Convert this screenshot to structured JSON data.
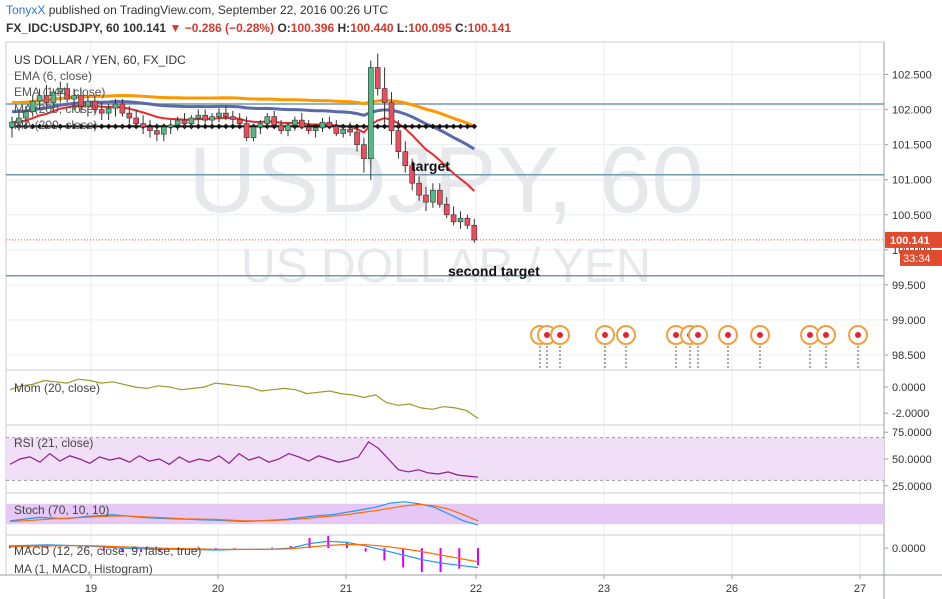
{
  "header": {
    "author": "TonyxX",
    "published_text": "published on TradingView.com, September 22, 2016 00:26 UTC",
    "symbol": "FX_IDC:USDJPY, 60",
    "last": "100.141",
    "change": "−0.286 (−0.28%)",
    "open_label": "O:",
    "open": "100.396",
    "high_label": "H:",
    "high": "100.440",
    "low_label": "L:",
    "low": "100.095",
    "close_label": "C:",
    "close": "100.141"
  },
  "watermark": {
    "main": "USDJPY, 60",
    "sub": "US DOLLAR / YEN"
  },
  "colors": {
    "grid": "#e9edf2",
    "bull": "#53b987",
    "bear": "#eb4d5c",
    "ema_fast": "#ff9800",
    "ema_mid": "#5b6aa6",
    "ma200": "#e62c2c",
    "ma_black": "#111111",
    "mom": "#9a9a2e",
    "rsi": "#8e1a8e",
    "rsi_band": "#f1dff7",
    "stoch_band": "#e5c8f5",
    "macd": "#2196f3",
    "signal": "#ff6d00",
    "hist": "#d500f9",
    "level_line": "#6f9bab",
    "price_badge": "#e04a2e"
  },
  "chart_data": [
    {
      "type": "candlestick",
      "title": "US DOLLAR / YEN, 60, FX_IDC",
      "indicators": [
        "EMA (6, close)",
        "EMA (144, close)",
        "MA (200, close)",
        "MA (200, close)"
      ],
      "x_axis_labels": [
        "19",
        "20",
        "21",
        "22",
        "23",
        "26",
        "27"
      ],
      "y_ticks": [
        "102.500",
        "102.000",
        "101.500",
        "101.000",
        "100.500",
        "100.000",
        "99.500",
        "99.000",
        "98.500"
      ],
      "ylim": [
        98.4,
        102.85
      ],
      "last_price": "100.141",
      "countdown": "33:34",
      "horizontal_levels": [
        102.08,
        101.07,
        99.63
      ],
      "annotations": [
        "target",
        "second target"
      ],
      "ohlc": [
        [
          101.75,
          101.9,
          101.6,
          101.82
        ],
        [
          101.82,
          102.0,
          101.7,
          101.88
        ],
        [
          101.88,
          102.05,
          101.8,
          101.97
        ],
        [
          101.97,
          102.2,
          101.9,
          102.12
        ],
        [
          102.12,
          102.3,
          102.0,
          102.2
        ],
        [
          102.2,
          102.35,
          102.05,
          102.1
        ],
        [
          102.1,
          102.3,
          101.95,
          102.25
        ],
        [
          102.25,
          102.4,
          102.1,
          102.3
        ],
        [
          102.3,
          102.38,
          102.1,
          102.15
        ],
        [
          102.15,
          102.3,
          102.0,
          102.2
        ],
        [
          102.2,
          102.3,
          101.95,
          102.05
        ],
        [
          102.05,
          102.2,
          101.9,
          102.12
        ],
        [
          102.12,
          102.2,
          101.95,
          102.0
        ],
        [
          102.0,
          102.1,
          101.85,
          101.95
        ],
        [
          101.95,
          102.08,
          101.85,
          102.02
        ],
        [
          102.02,
          102.15,
          101.9,
          102.08
        ],
        [
          102.08,
          102.15,
          101.9,
          101.95
        ],
        [
          101.95,
          102.05,
          101.8,
          101.88
        ],
        [
          101.88,
          102.0,
          101.75,
          101.8
        ],
        [
          101.8,
          101.92,
          101.65,
          101.75
        ],
        [
          101.75,
          101.85,
          101.6,
          101.7
        ],
        [
          101.7,
          101.8,
          101.55,
          101.65
        ],
        [
          101.65,
          101.8,
          101.55,
          101.75
        ],
        [
          101.75,
          101.85,
          101.65,
          101.78
        ],
        [
          101.78,
          101.9,
          101.7,
          101.85
        ],
        [
          101.85,
          101.95,
          101.72,
          101.8
        ],
        [
          101.8,
          101.92,
          101.72,
          101.88
        ],
        [
          101.88,
          102.0,
          101.8,
          101.92
        ],
        [
          101.92,
          102.0,
          101.8,
          101.85
        ],
        [
          101.85,
          101.95,
          101.75,
          101.9
        ],
        [
          101.9,
          102.02,
          101.82,
          101.95
        ],
        [
          101.95,
          102.05,
          101.85,
          101.9
        ],
        [
          101.9,
          101.98,
          101.8,
          101.86
        ],
        [
          101.86,
          101.95,
          101.75,
          101.8
        ],
        [
          101.8,
          101.9,
          101.55,
          101.6
        ],
        [
          101.6,
          101.78,
          101.55,
          101.75
        ],
        [
          101.75,
          101.85,
          101.65,
          101.8
        ],
        [
          101.8,
          101.95,
          101.72,
          101.9
        ],
        [
          101.9,
          101.98,
          101.75,
          101.78
        ],
        [
          101.78,
          101.85,
          101.65,
          101.7
        ],
        [
          101.7,
          101.82,
          101.62,
          101.78
        ],
        [
          101.78,
          101.9,
          101.7,
          101.85
        ],
        [
          101.85,
          101.95,
          101.72,
          101.75
        ],
        [
          101.75,
          101.85,
          101.65,
          101.7
        ],
        [
          101.7,
          101.8,
          101.6,
          101.74
        ],
        [
          101.74,
          101.88,
          101.68,
          101.82
        ],
        [
          101.82,
          101.9,
          101.72,
          101.76
        ],
        [
          101.76,
          101.85,
          101.62,
          101.66
        ],
        [
          101.66,
          101.78,
          101.6,
          101.72
        ],
        [
          101.72,
          101.82,
          101.62,
          101.68
        ],
        [
          101.68,
          101.75,
          101.4,
          101.5
        ],
        [
          101.5,
          101.6,
          101.1,
          101.3
        ],
        [
          101.3,
          102.7,
          101.0,
          102.6
        ],
        [
          102.6,
          102.8,
          102.2,
          102.3
        ],
        [
          102.3,
          102.6,
          101.8,
          102.1
        ],
        [
          102.1,
          102.25,
          101.5,
          101.7
        ],
        [
          101.7,
          101.85,
          101.3,
          101.4
        ],
        [
          101.4,
          101.55,
          101.1,
          101.2
        ],
        [
          101.2,
          101.3,
          100.85,
          100.95
        ],
        [
          100.95,
          101.05,
          100.7,
          100.78
        ],
        [
          100.78,
          100.9,
          100.55,
          100.68
        ],
        [
          100.68,
          100.95,
          100.6,
          100.85
        ],
        [
          100.85,
          100.95,
          100.6,
          100.65
        ],
        [
          100.65,
          100.75,
          100.45,
          100.5
        ],
        [
          100.5,
          100.62,
          100.35,
          100.4
        ],
        [
          100.4,
          100.55,
          100.3,
          100.45
        ],
        [
          100.45,
          100.5,
          100.3,
          100.35
        ],
        [
          100.35,
          100.44,
          100.1,
          100.14
        ]
      ]
    },
    {
      "type": "line",
      "title": "Mom (20, close)",
      "y_ticks": [
        "0.0000",
        "-2.0000"
      ],
      "ylim": [
        -2.6,
        1.0
      ],
      "values": [
        -0.2,
        0.1,
        0.2,
        0.5,
        0.4,
        0.3,
        0.6,
        0.5,
        0.3,
        0.4,
        0.2,
        0.0,
        -0.1,
        0.1,
        0.0,
        -0.2,
        -0.1,
        0.0,
        0.3,
        0.2,
        0.1,
        0.0,
        -0.3,
        -0.2,
        -0.1,
        -0.2,
        -0.5,
        -0.4,
        -0.3,
        -0.5,
        -0.6,
        -0.8,
        -0.6,
        -1.2,
        -1.4,
        -1.3,
        -1.6,
        -1.7,
        -1.5,
        -1.6,
        -1.8,
        -2.4
      ]
    },
    {
      "type": "line",
      "title": "RSI (21, close)",
      "y_ticks": [
        "75.0000",
        "50.0000",
        "25.0000"
      ],
      "ylim": [
        22,
        78
      ],
      "band": [
        30,
        70
      ],
      "values": [
        45,
        50,
        52,
        47,
        55,
        48,
        53,
        50,
        46,
        52,
        49,
        51,
        47,
        53,
        48,
        50,
        45,
        52,
        47,
        50,
        48,
        53,
        46,
        55,
        49,
        52,
        47,
        50,
        55,
        52,
        48,
        53,
        50,
        47,
        49,
        52,
        66,
        60,
        50,
        40,
        38,
        40,
        37,
        36,
        38,
        35,
        34,
        33
      ]
    },
    {
      "type": "line",
      "title": "Stoch (70, 10, 10)",
      "ylim": [
        0,
        100
      ],
      "band": [
        20,
        80
      ],
      "series": [
        {
          "values": [
            30,
            35,
            40,
            38,
            36,
            42,
            45,
            48,
            44,
            40,
            38,
            36,
            35,
            33,
            32,
            30,
            28,
            30,
            32,
            35,
            40,
            45,
            48,
            55,
            62,
            70,
            82,
            86,
            80,
            70,
            50,
            30,
            18
          ]
        },
        {
          "values": [
            28,
            30,
            33,
            36,
            38,
            40,
            42,
            44,
            44,
            42,
            40,
            38,
            36,
            35,
            34,
            32,
            30,
            30,
            31,
            33,
            36,
            40,
            44,
            48,
            54,
            60,
            67,
            74,
            78,
            74,
            64,
            48,
            30
          ]
        }
      ]
    },
    {
      "type": "line",
      "title": "MACD (12, 26, close, 9, false, true)",
      "subtitle": "MA (1, MACD, Histogram)",
      "y_ticks": [
        "0.0000"
      ],
      "ylim": [
        -1.0,
        0.4
      ],
      "series": [
        {
          "values": [
            0.1,
            0.12,
            0.14,
            0.12,
            0.1,
            0.05,
            0.0,
            -0.03,
            -0.05,
            -0.04,
            -0.06,
            -0.08,
            -0.06,
            -0.05,
            -0.04,
            0.0,
            0.2,
            0.3,
            0.25,
            0.1,
            -0.1,
            -0.3,
            -0.5,
            -0.65,
            -0.75,
            -0.85
          ]
        },
        {
          "values": [
            0.06,
            0.08,
            0.1,
            0.11,
            0.11,
            0.09,
            0.06,
            0.03,
            0.0,
            -0.02,
            -0.03,
            -0.05,
            -0.05,
            -0.05,
            -0.05,
            -0.03,
            0.05,
            0.12,
            0.16,
            0.15,
            0.08,
            -0.02,
            -0.15,
            -0.3,
            -0.45,
            -0.6
          ]
        }
      ]
    }
  ]
}
